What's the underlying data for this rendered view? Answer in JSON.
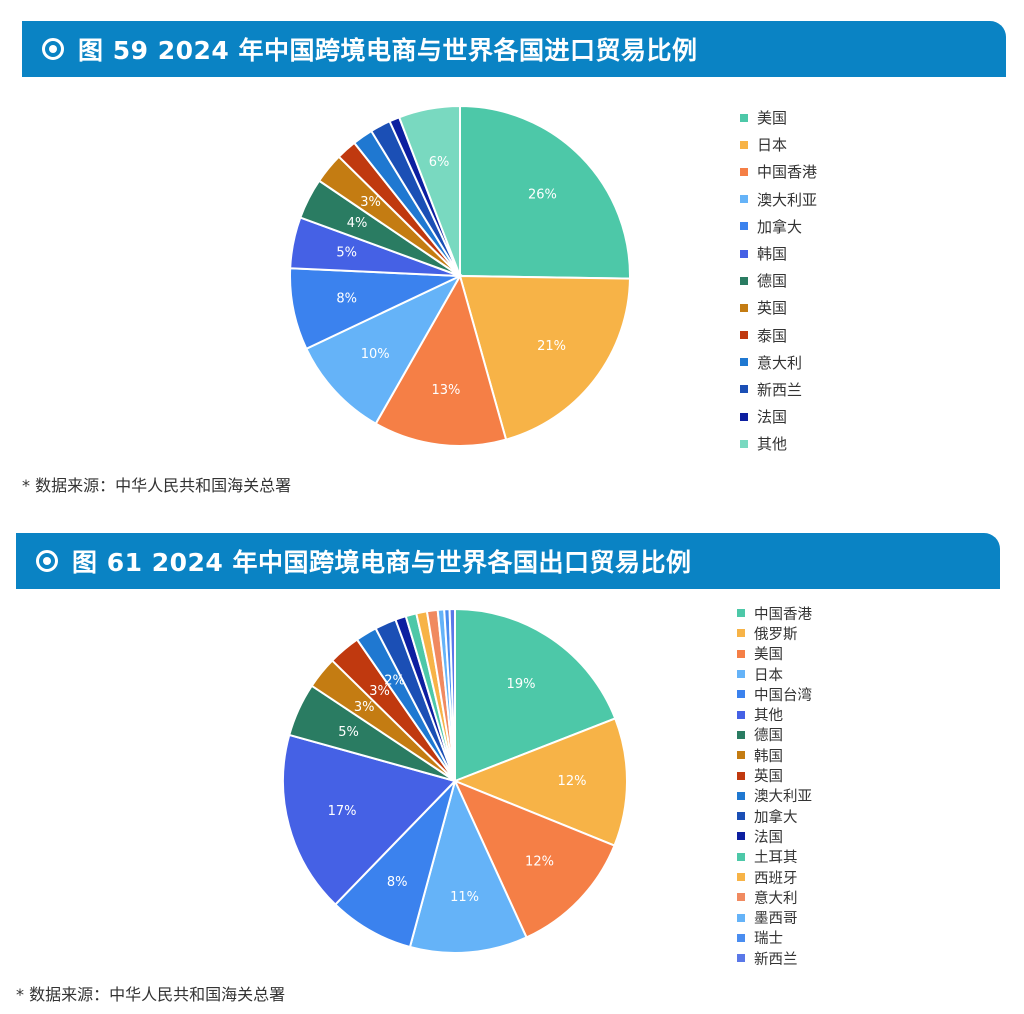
{
  "sections": [
    {
      "title": "图 59  2024 年中国跨境电商与世界各国进口贸易比例",
      "source": "* 数据来源：中华人民共和国海关总署"
    },
    {
      "title": "图 61  2024 年中国跨境电商与世界各国出口贸易比例",
      "source": "* 数据来源：中华人民共和国海关总署"
    }
  ],
  "chart_data": [
    {
      "type": "pie",
      "title": "图 59  2024 年中国跨境电商与世界各国进口贸易比例",
      "legend_position": "right",
      "slices": [
        {
          "label": "美国",
          "value": 26,
          "color": "#4dc8a8",
          "display": "26%"
        },
        {
          "label": "日本",
          "value": 21,
          "color": "#f7b347",
          "display": "21%"
        },
        {
          "label": "中国香港",
          "value": 13,
          "color": "#f57f46",
          "display": "13%"
        },
        {
          "label": "澳大利亚",
          "value": 10,
          "color": "#65b3f8",
          "display": "10%"
        },
        {
          "label": "加拿大",
          "value": 8,
          "color": "#3b82ee",
          "display": "8%"
        },
        {
          "label": "韩国",
          "value": 5,
          "color": "#4561e5",
          "display": "5%"
        },
        {
          "label": "德国",
          "value": 4,
          "color": "#2a7c62",
          "display": "4%"
        },
        {
          "label": "英国",
          "value": 3,
          "color": "#c47c12",
          "display": "3%"
        },
        {
          "label": "泰国",
          "value": 2,
          "color": "#c0390f",
          "display": ""
        },
        {
          "label": "意大利",
          "value": 2,
          "color": "#1f78d1",
          "display": ""
        },
        {
          "label": "新西兰",
          "value": 2,
          "color": "#1b4fb5",
          "display": ""
        },
        {
          "label": "法国",
          "value": 1,
          "color": "#0d1fa0",
          "display": ""
        },
        {
          "label": "其他",
          "value": 6,
          "color": "#79d9c0",
          "display": "6%"
        }
      ]
    },
    {
      "type": "pie",
      "title": "图 61  2024 年中国跨境电商与世界各国出口贸易比例",
      "legend_position": "right",
      "slices": [
        {
          "label": "中国香港",
          "value": 19,
          "color": "#4dc8a8",
          "display": "19%"
        },
        {
          "label": "俄罗斯",
          "value": 12,
          "color": "#f7b347",
          "display": "12%"
        },
        {
          "label": "美国",
          "value": 12,
          "color": "#f57f46",
          "display": "12%"
        },
        {
          "label": "日本",
          "value": 11,
          "color": "#65b3f8",
          "display": "11%"
        },
        {
          "label": "中国台湾",
          "value": 8,
          "color": "#3b82ee",
          "display": "8%"
        },
        {
          "label": "其他",
          "value": 17,
          "color": "#4561e5",
          "display": "17%"
        },
        {
          "label": "德国",
          "value": 5,
          "color": "#2a7c62",
          "display": "5%"
        },
        {
          "label": "韩国",
          "value": 3,
          "color": "#c47c12",
          "display": "3%"
        },
        {
          "label": "英国",
          "value": 3,
          "color": "#c0390f",
          "display": "3%"
        },
        {
          "label": "澳大利亚",
          "value": 2,
          "color": "#1f78d1",
          "display": "2%"
        },
        {
          "label": "加拿大",
          "value": 2,
          "color": "#1b4fb5",
          "display": ""
        },
        {
          "label": "法国",
          "value": 1,
          "color": "#0d1fa0",
          "display": ""
        },
        {
          "label": "土耳其",
          "value": 1,
          "color": "#4dc8a8",
          "display": ""
        },
        {
          "label": "西班牙",
          "value": 1,
          "color": "#f7b347",
          "display": ""
        },
        {
          "label": "意大利",
          "value": 1,
          "color": "#f08a60",
          "display": ""
        },
        {
          "label": "墨西哥",
          "value": 0.6,
          "color": "#65b3f8",
          "display": ""
        },
        {
          "label": "瑞士",
          "value": 0.5,
          "color": "#4a8df0",
          "display": ""
        },
        {
          "label": "新西兰",
          "value": 0.5,
          "color": "#5a78e8",
          "display": ""
        }
      ]
    }
  ]
}
